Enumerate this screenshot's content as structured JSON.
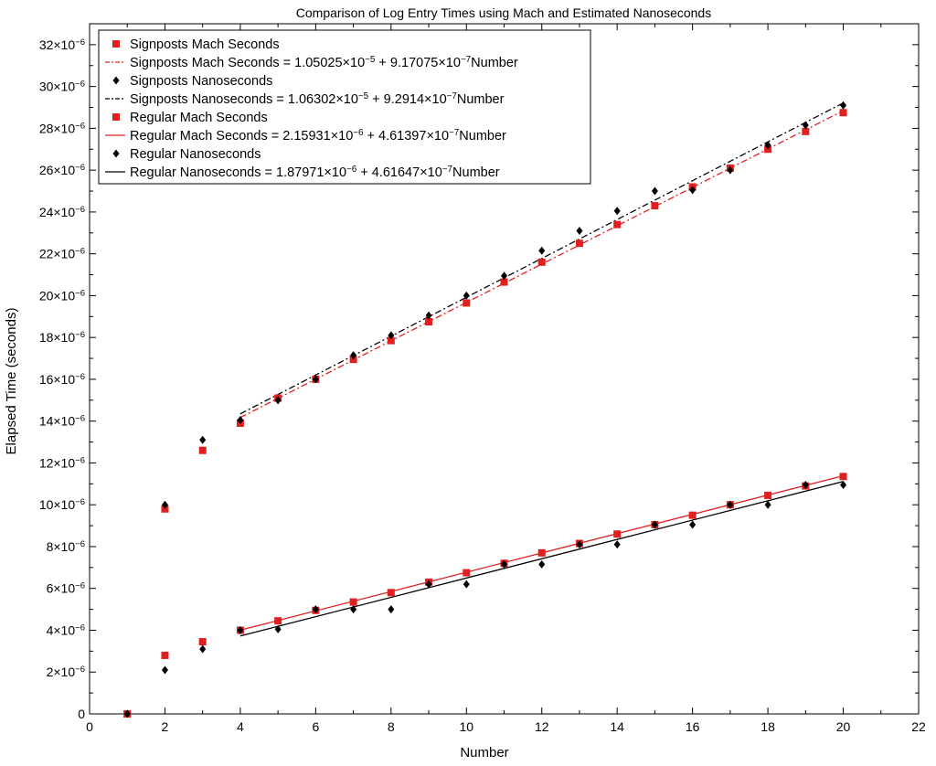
{
  "chart_data": {
    "type": "scatter",
    "title": "Comparison of Log Entry Times using Mach and Estimated Nanoseconds",
    "xlabel": "Number",
    "ylabel": "Elapsed Time (seconds)",
    "xlim": [
      0,
      22
    ],
    "ylim": [
      0,
      3.3e-05
    ],
    "x_ticks": [
      "0",
      "2",
      "4",
      "6",
      "8",
      "10",
      "12",
      "14",
      "16",
      "18",
      "20",
      "22"
    ],
    "y_ticks": [
      {
        "value": 0,
        "label": "0",
        "exp": ""
      },
      {
        "value": 2e-06,
        "label": "2×10",
        "exp": "−6"
      },
      {
        "value": 4e-06,
        "label": "4×10",
        "exp": "−6"
      },
      {
        "value": 6e-06,
        "label": "6×10",
        "exp": "−6"
      },
      {
        "value": 8e-06,
        "label": "8×10",
        "exp": "−6"
      },
      {
        "value": 1e-05,
        "label": "10×10",
        "exp": "−6"
      },
      {
        "value": 1.2e-05,
        "label": "12×10",
        "exp": "−6"
      },
      {
        "value": 1.4e-05,
        "label": "14×10",
        "exp": "−6"
      },
      {
        "value": 1.6e-05,
        "label": "16×10",
        "exp": "−6"
      },
      {
        "value": 1.8e-05,
        "label": "18×10",
        "exp": "−6"
      },
      {
        "value": 2e-05,
        "label": "20×10",
        "exp": "−6"
      },
      {
        "value": 2.2e-05,
        "label": "22×10",
        "exp": "−6"
      },
      {
        "value": 2.4e-05,
        "label": "24×10",
        "exp": "−6"
      },
      {
        "value": 2.6e-05,
        "label": "26×10",
        "exp": "−6"
      },
      {
        "value": 2.8e-05,
        "label": "28×10",
        "exp": "−6"
      },
      {
        "value": 3e-05,
        "label": "30×10",
        "exp": "−6"
      },
      {
        "value": 3.2e-05,
        "label": "32×10",
        "exp": "−6"
      }
    ],
    "grid": false,
    "legend_position": "top-left",
    "series": [
      {
        "name": "Signposts Mach Seconds",
        "kind": "points",
        "marker": "square",
        "color": "#e02020",
        "x": [
          1,
          2,
          3,
          4,
          5,
          6,
          7,
          8,
          9,
          10,
          11,
          12,
          13,
          14,
          15,
          16,
          17,
          18,
          19,
          20
        ],
        "y": [
          0,
          9.8e-06,
          1.26e-05,
          1.39e-05,
          1.51e-05,
          1.6e-05,
          1.695e-05,
          1.785e-05,
          1.875e-05,
          1.965e-05,
          2.065e-05,
          2.16e-05,
          2.25e-05,
          2.34e-05,
          2.43e-05,
          2.52e-05,
          2.61e-05,
          2.7e-05,
          2.785e-05,
          2.875e-05
        ]
      },
      {
        "name": "Signposts Mach Seconds = 1.05025×10",
        "name_exp": "−5",
        "name_rest": " + 9.17075×10",
        "name_exp2": "−7",
        "name_tail": "Number",
        "kind": "fit",
        "style": "dashdot",
        "color": "#e02020",
        "intercept": 1.05025e-05,
        "slope": 9.17075e-07,
        "range": [
          4,
          20
        ]
      },
      {
        "name": "Signposts Nanoseconds",
        "kind": "points",
        "marker": "diamond",
        "color": "#000000",
        "x": [
          1,
          2,
          3,
          4,
          5,
          6,
          7,
          8,
          9,
          10,
          11,
          12,
          13,
          14,
          15,
          16,
          17,
          18,
          19,
          20
        ],
        "y": [
          0,
          1e-05,
          1.31e-05,
          1.405e-05,
          1.5e-05,
          1.6e-05,
          1.715e-05,
          1.81e-05,
          1.905e-05,
          2e-05,
          2.095e-05,
          2.215e-05,
          2.31e-05,
          2.405e-05,
          2.5e-05,
          2.505e-05,
          2.6e-05,
          2.72e-05,
          2.815e-05,
          2.91e-05
        ]
      },
      {
        "name": "Signposts Nanoseconds = 1.06302×10",
        "name_exp": "−5",
        "name_rest": " + 9.2914×10",
        "name_exp2": "−7",
        "name_tail": "Number",
        "kind": "fit",
        "style": "dashdot",
        "color": "#000000",
        "intercept": 1.06302e-05,
        "slope": 9.2914e-07,
        "range": [
          4,
          20
        ]
      },
      {
        "name": "Regular Mach Seconds",
        "kind": "points",
        "marker": "square",
        "color": "#e02020",
        "x": [
          1,
          2,
          3,
          4,
          5,
          6,
          7,
          8,
          9,
          10,
          11,
          12,
          13,
          14,
          15,
          16,
          17,
          18,
          19,
          20
        ],
        "y": [
          0,
          2.8e-06,
          3.45e-06,
          4e-06,
          4.45e-06,
          4.95e-06,
          5.35e-06,
          5.8e-06,
          6.3e-06,
          6.75e-06,
          7.2e-06,
          7.7e-06,
          8.15e-06,
          8.6e-06,
          9.05e-06,
          9.5e-06,
          1e-05,
          1.045e-05,
          1.09e-05,
          1.135e-05
        ]
      },
      {
        "name": "Regular Mach Seconds = 2.15931×10",
        "name_exp": "−6",
        "name_rest": " + 4.61397×10",
        "name_exp2": "−7",
        "name_tail": "Number",
        "kind": "fit",
        "style": "solid",
        "color": "#e02020",
        "intercept": 2.15931e-06,
        "slope": 4.61397e-07,
        "range": [
          4,
          20
        ]
      },
      {
        "name": "Regular Nanoseconds",
        "kind": "points",
        "marker": "diamond",
        "color": "#000000",
        "x": [
          1,
          2,
          3,
          4,
          5,
          6,
          7,
          8,
          9,
          10,
          11,
          12,
          13,
          14,
          15,
          16,
          17,
          18,
          19,
          20
        ],
        "y": [
          0,
          2.1e-06,
          3.1e-06,
          4e-06,
          4.05e-06,
          5e-06,
          5e-06,
          5e-06,
          6.2e-06,
          6.2e-06,
          7.15e-06,
          7.15e-06,
          8.1e-06,
          8.1e-06,
          9.05e-06,
          9.05e-06,
          1e-05,
          1e-05,
          1.095e-05,
          1.095e-05
        ]
      },
      {
        "name": "Regular Nanoseconds = 1.87971×10",
        "name_exp": "−6",
        "name_rest": " + 4.61647×10",
        "name_exp2": "−7",
        "name_tail": "Number",
        "kind": "fit",
        "style": "solid",
        "color": "#000000",
        "intercept": 1.87971e-06,
        "slope": 4.61647e-07,
        "range": [
          4,
          20
        ]
      }
    ]
  }
}
